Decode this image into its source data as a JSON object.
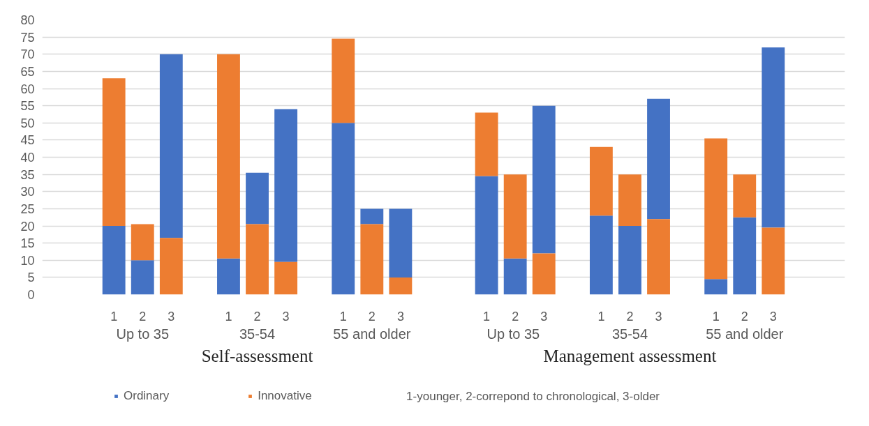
{
  "chart_data": {
    "type": "bar",
    "categories": [
      null,
      null,
      "1",
      "2",
      "3",
      null,
      "1",
      "2",
      "3",
      null,
      "1",
      "2",
      "3",
      null,
      null,
      "1",
      "2",
      "3",
      null,
      "1",
      "2",
      "3",
      null,
      "1",
      "2",
      "3",
      null,
      null
    ],
    "series": [
      {
        "name": "Ordinary",
        "color": "#4472c4",
        "base": [
          null,
          null,
          0,
          0,
          16.5,
          null,
          0,
          20.5,
          9.5,
          null,
          0,
          20.5,
          5,
          null,
          null,
          0,
          0,
          12,
          null,
          0,
          0,
          22,
          null,
          0,
          0,
          19.5,
          null,
          null
        ],
        "values": [
          null,
          null,
          20,
          10,
          53.5,
          null,
          10.5,
          15,
          44.5,
          null,
          50,
          4.5,
          20,
          null,
          null,
          34.5,
          10.5,
          43,
          null,
          23,
          20,
          35,
          null,
          4.5,
          22.5,
          52.5,
          null,
          null
        ]
      },
      {
        "name": "Innovative",
        "color": "#ed7d31",
        "base": [
          null,
          null,
          20,
          10,
          0,
          null,
          10.5,
          0,
          0,
          null,
          50,
          0,
          0,
          null,
          null,
          34.5,
          10.5,
          0,
          null,
          23,
          20,
          0,
          null,
          4.5,
          22.5,
          0,
          null,
          null
        ],
        "values": [
          null,
          null,
          43,
          10.5,
          16.5,
          null,
          59.5,
          20.5,
          9.5,
          null,
          24.5,
          20.5,
          5,
          null,
          null,
          18.5,
          24.5,
          12,
          null,
          20,
          15,
          22,
          null,
          41,
          12.5,
          19.5,
          null,
          null
        ]
      }
    ],
    "annotations": [
      "Up to 35",
      "35-54",
      "55 and older",
      "Up to  35",
      "35-54",
      "55 and older",
      "Self-assessment",
      "Management assessment",
      "1-younger, 2-correpond to chronological, 3-older"
    ],
    "ylim": [
      0,
      80
    ],
    "yticks": [
      0,
      5,
      10,
      15,
      20,
      25,
      30,
      35,
      40,
      45,
      50,
      55,
      60,
      65,
      70,
      75,
      80
    ],
    "grid": "y",
    "legend": "bottom"
  }
}
